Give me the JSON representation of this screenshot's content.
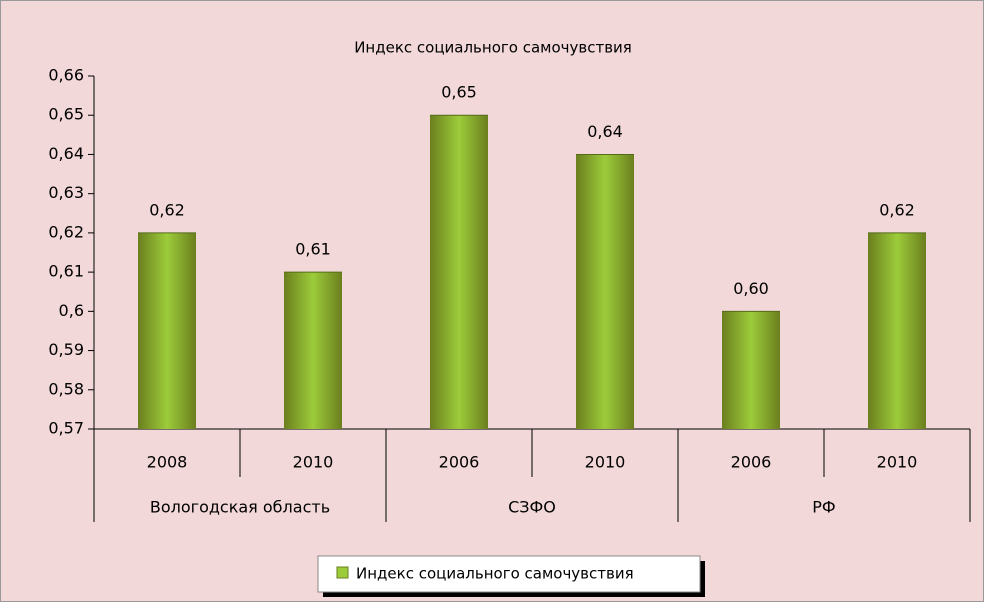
{
  "chart_data": {
    "type": "bar",
    "title": "Индекс социального самочувствия",
    "categories": [
      "2008",
      "2010",
      "2006",
      "2010",
      "2006",
      "2010"
    ],
    "groups": [
      "Вологодская область",
      "СЗФО",
      "РФ"
    ],
    "series": [
      {
        "name": "Индекс социального самочувствия",
        "color": "#9ccc3a",
        "values": [
          0.62,
          0.61,
          0.65,
          0.64,
          0.6,
          0.62
        ],
        "value_labels": [
          "0,62",
          "0,61",
          "0,65",
          "0,64",
          "0,60",
          "0,62"
        ]
      }
    ],
    "ylim": [
      0.57,
      0.66
    ],
    "yticks": [
      {
        "value": 0.57,
        "label": "0,57"
      },
      {
        "value": 0.58,
        "label": "0,58"
      },
      {
        "value": 0.59,
        "label": "0,59"
      },
      {
        "value": 0.6,
        "label": "0,6"
      },
      {
        "value": 0.61,
        "label": "0,61"
      },
      {
        "value": 0.62,
        "label": "0,62"
      },
      {
        "value": 0.63,
        "label": "0,63"
      },
      {
        "value": 0.64,
        "label": "0,64"
      },
      {
        "value": 0.65,
        "label": "0,65"
      },
      {
        "value": 0.66,
        "label": "0,66"
      }
    ],
    "legend": "bottom"
  }
}
